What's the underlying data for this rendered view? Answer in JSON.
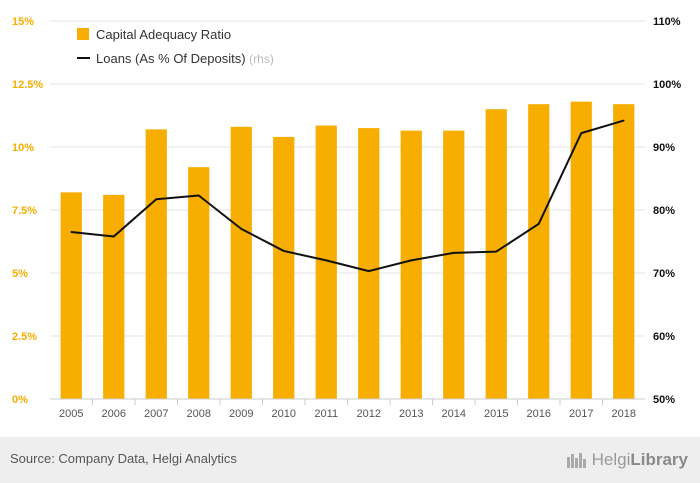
{
  "chart_data": {
    "type": "bar+line",
    "categories": [
      "2005",
      "2006",
      "2007",
      "2008",
      "2009",
      "2010",
      "2011",
      "2012",
      "2013",
      "2014",
      "2015",
      "2016",
      "2017",
      "2018"
    ],
    "series": [
      {
        "name": "Capital Adequacy Ratio",
        "kind": "bar",
        "axis": "left",
        "color": "#F7AE00",
        "values": [
          8.2,
          8.1,
          10.7,
          9.2,
          10.8,
          10.4,
          10.85,
          10.75,
          10.65,
          10.65,
          11.5,
          11.7,
          11.8,
          11.7
        ]
      },
      {
        "name": "Loans (As % Of Deposits)",
        "suffix": "(rhs)",
        "kind": "line",
        "axis": "right",
        "color": "#111111",
        "values": [
          76.5,
          75.8,
          81.7,
          82.3,
          77.0,
          73.5,
          72.0,
          70.3,
          72.0,
          73.2,
          73.4,
          77.8,
          92.2,
          94.2
        ]
      }
    ],
    "left_axis": {
      "min": 0,
      "max": 15,
      "ticks": [
        "0%",
        "2.5%",
        "5%",
        "7.5%",
        "10%",
        "12.5%",
        "15%"
      ],
      "color": "#F7AE00"
    },
    "right_axis": {
      "min": 50,
      "max": 110,
      "ticks": [
        "50%",
        "60%",
        "70%",
        "80%",
        "90%",
        "100%",
        "110%"
      ]
    },
    "legend_position": "top-left",
    "grid": true
  },
  "footer": {
    "source": "Source: Company Data, Helgi Analytics",
    "logo_light": "Helgi",
    "logo_bold": "Library"
  }
}
